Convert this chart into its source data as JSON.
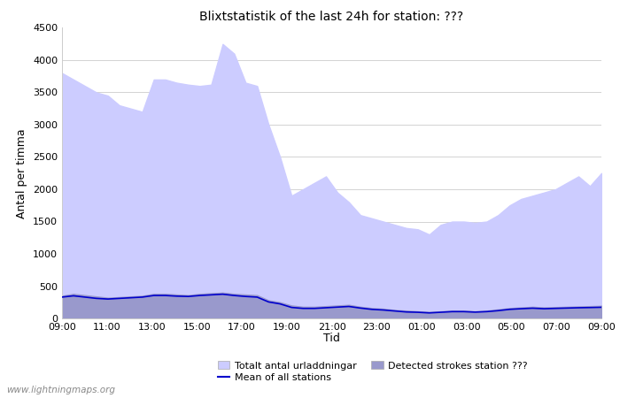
{
  "title": "Blixtstatistik of the last 24h for station: ???",
  "xlabel": "Tid",
  "ylabel": "Antal per timma",
  "watermark": "www.lightningmaps.org",
  "legend": {
    "total": "Totalt antal urladdningar",
    "detected": "Detected strokes station ???",
    "mean": "Mean of all stations"
  },
  "x_ticks": [
    "09:00",
    "11:00",
    "13:00",
    "15:00",
    "17:00",
    "19:00",
    "21:00",
    "23:00",
    "01:00",
    "03:00",
    "05:00",
    "07:00",
    "09:00"
  ],
  "ylim": [
    0,
    4500
  ],
  "yticks": [
    0,
    500,
    1000,
    1500,
    2000,
    2500,
    3000,
    3500,
    4000,
    4500
  ],
  "total_color": "#ccccff",
  "detected_color": "#9999cc",
  "mean_line_color": "#0000cc",
  "background_color": "#ffffff",
  "total_data": [
    3800,
    3700,
    3600,
    3500,
    3450,
    3300,
    3250,
    3200,
    3700,
    3700,
    3650,
    3620,
    3600,
    3620,
    4250,
    4100,
    3650,
    3600,
    3000,
    2500,
    1900,
    2000,
    2100,
    2200,
    1950,
    1800,
    1600,
    1550,
    1500,
    1450,
    1400,
    1380,
    1300,
    1450,
    1500,
    1500,
    1480,
    1500,
    1600,
    1750,
    1850,
    1900,
    1950,
    2000,
    2100,
    2200,
    2050,
    2250
  ],
  "detected_data": [
    350,
    380,
    360,
    340,
    320,
    330,
    340,
    350,
    380,
    380,
    370,
    360,
    380,
    390,
    400,
    380,
    370,
    360,
    280,
    250,
    200,
    180,
    180,
    190,
    200,
    210,
    180,
    160,
    150,
    130,
    120,
    110,
    100,
    110,
    120,
    120,
    110,
    120,
    140,
    160,
    170,
    180,
    170,
    175,
    180,
    185,
    190,
    195
  ],
  "mean_data": [
    330,
    350,
    330,
    310,
    300,
    310,
    320,
    330,
    355,
    355,
    345,
    340,
    355,
    365,
    375,
    355,
    340,
    330,
    255,
    225,
    170,
    155,
    155,
    165,
    175,
    185,
    160,
    140,
    130,
    115,
    100,
    95,
    85,
    95,
    105,
    105,
    97,
    105,
    120,
    140,
    150,
    158,
    150,
    155,
    160,
    165,
    168,
    172
  ]
}
